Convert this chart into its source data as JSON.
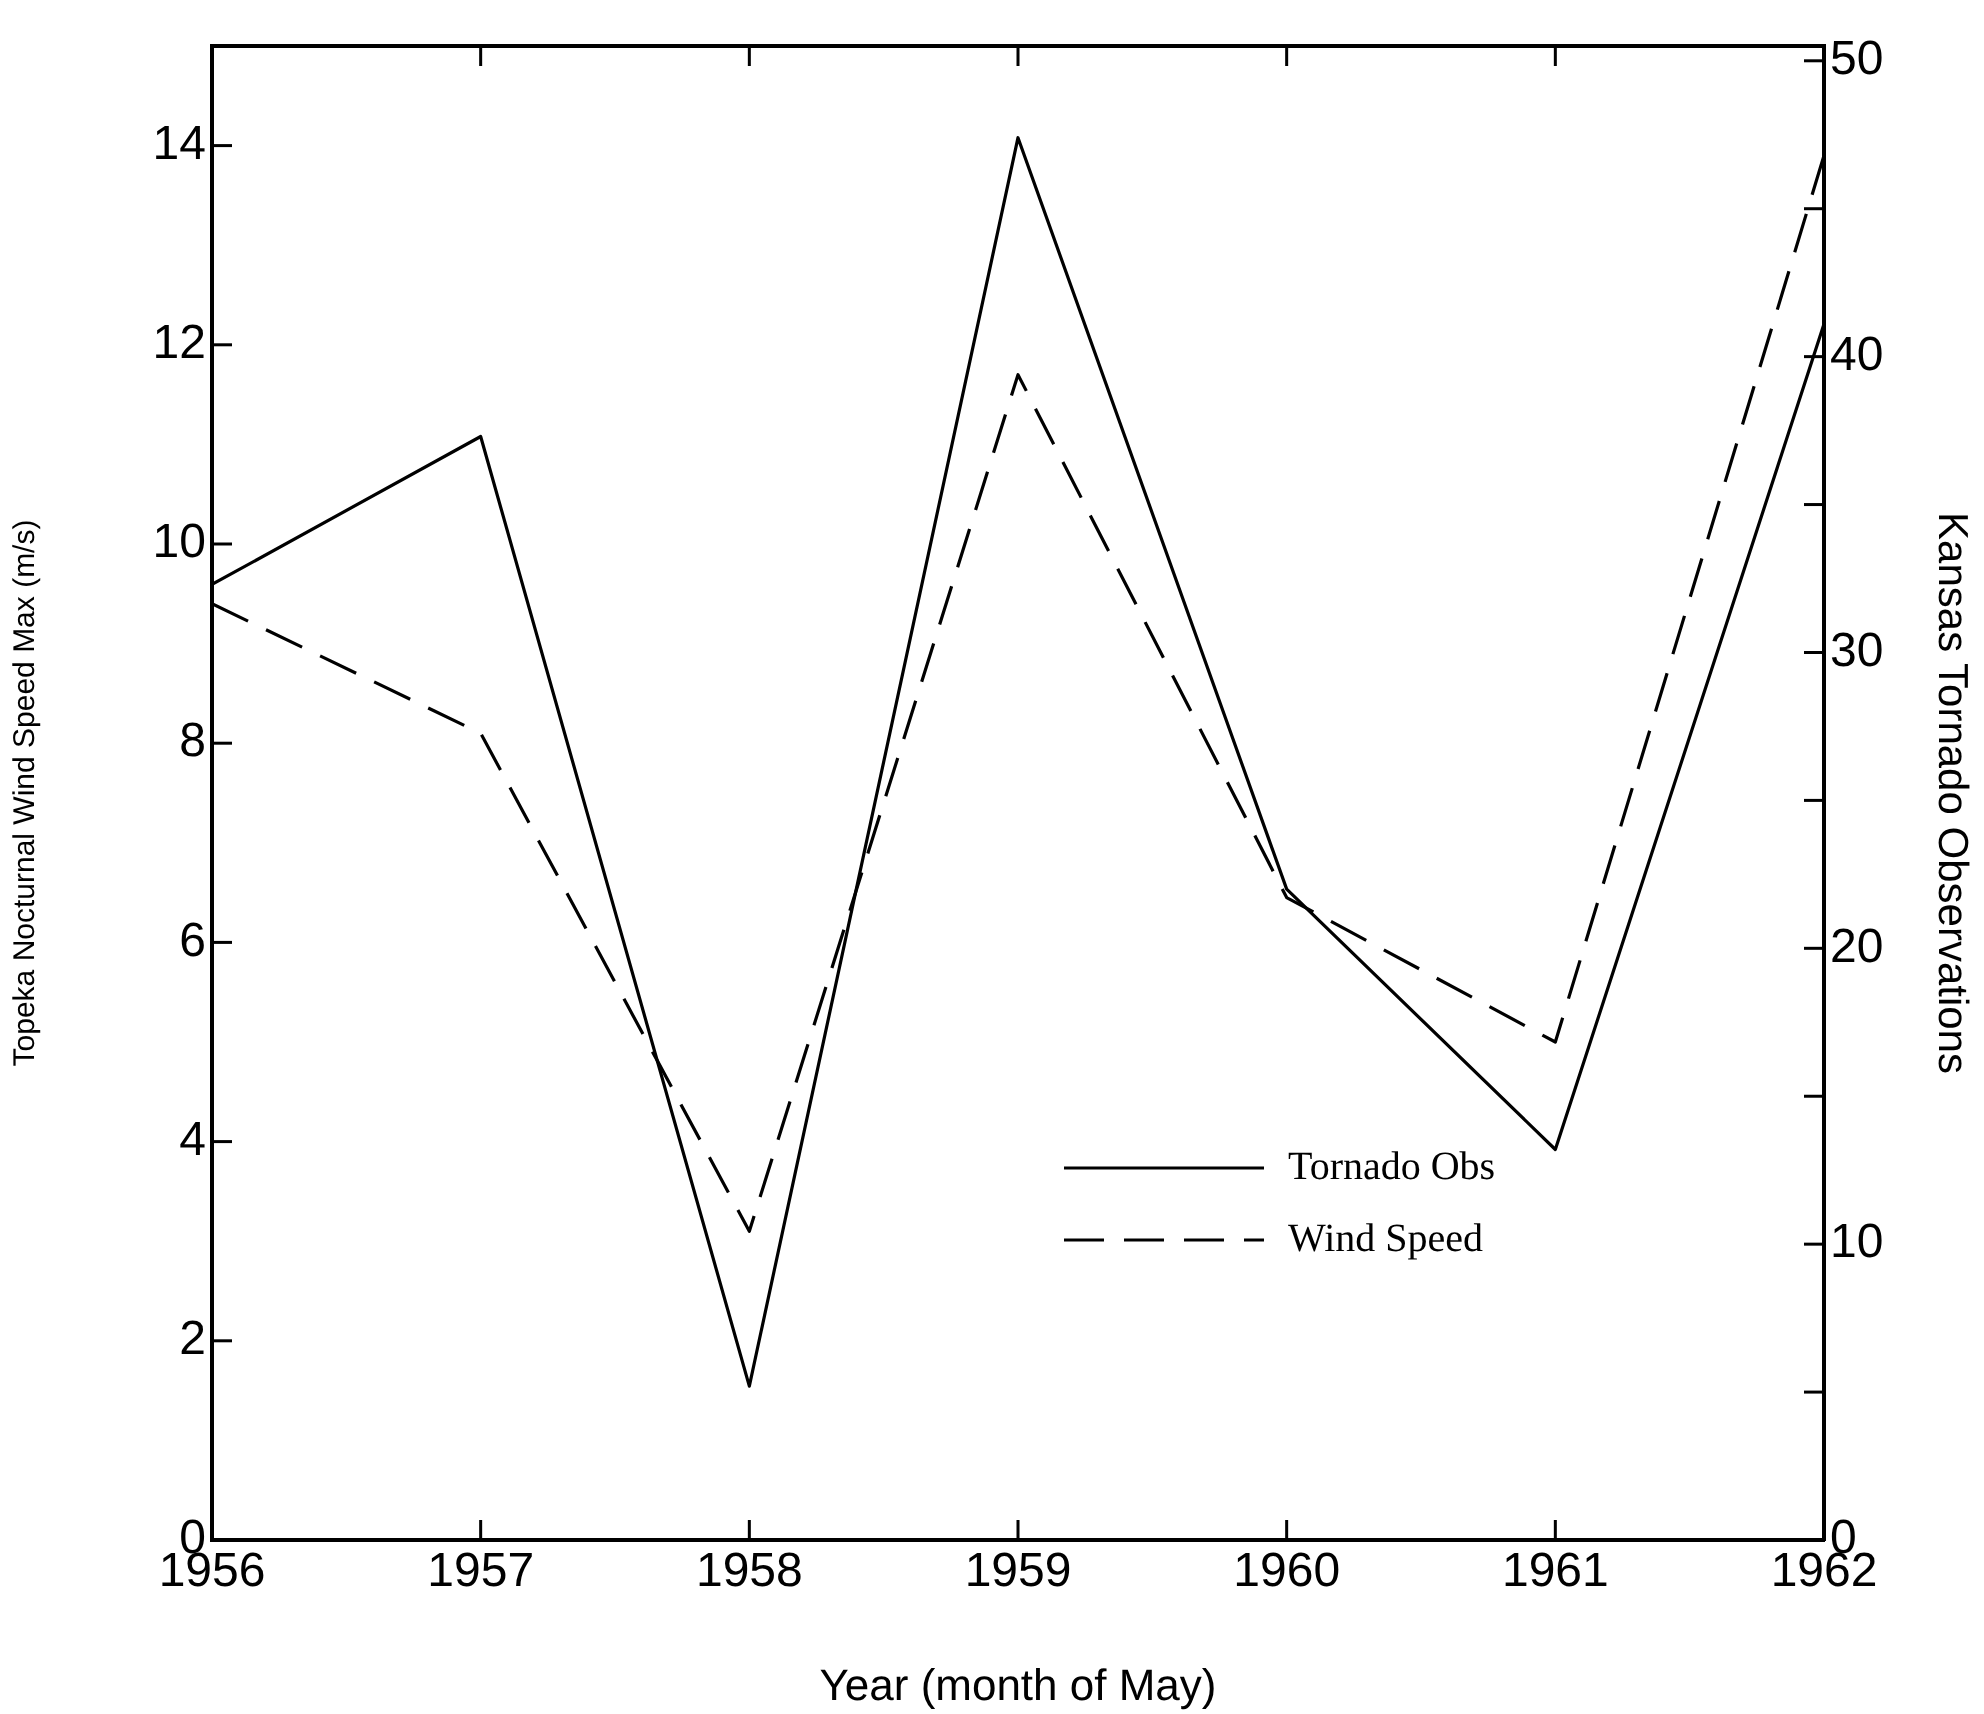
{
  "chart_data": {
    "type": "line",
    "xlabel": "Year (month of May)",
    "ylabel": "Topeka Nocturnal Wind Speed Max (m/s)",
    "y2label": "Kansas Tornado Observations",
    "x": [
      1956,
      1957,
      1958,
      1959,
      1960,
      1961,
      1962
    ],
    "xlim": [
      1956,
      1962
    ],
    "xticks": [
      1956,
      1957,
      1958,
      1959,
      1960,
      1961,
      1962
    ],
    "ylim": [
      0,
      15
    ],
    "yticks": [
      0,
      2,
      4,
      6,
      8,
      10,
      12,
      14
    ],
    "y2lim": [
      0,
      50.5
    ],
    "y2ticks": [
      0,
      {
        "value": 5,
        "label": null
      },
      10,
      {
        "value": 15,
        "label": null
      },
      20,
      {
        "value": 25,
        "label": null
      },
      30,
      {
        "value": 35,
        "label": null
      },
      40,
      {
        "value": 45,
        "label": null
      },
      50
    ],
    "series": [
      {
        "name": "Tornado Obs",
        "color": "#000000",
        "axis": "y2",
        "line_style": "solid",
        "values": [
          32.3,
          37.3,
          5.2,
          47.4,
          22.0,
          13.2,
          41.1
        ]
      },
      {
        "name": "Wind Speed",
        "color": "#000000",
        "line_style": "dashed",
        "values": [
          9.4,
          8.1,
          3.1,
          11.7,
          6.45,
          5.0,
          13.9
        ]
      }
    ],
    "grid": false,
    "legend": "bottom right",
    "marker": "none"
  }
}
